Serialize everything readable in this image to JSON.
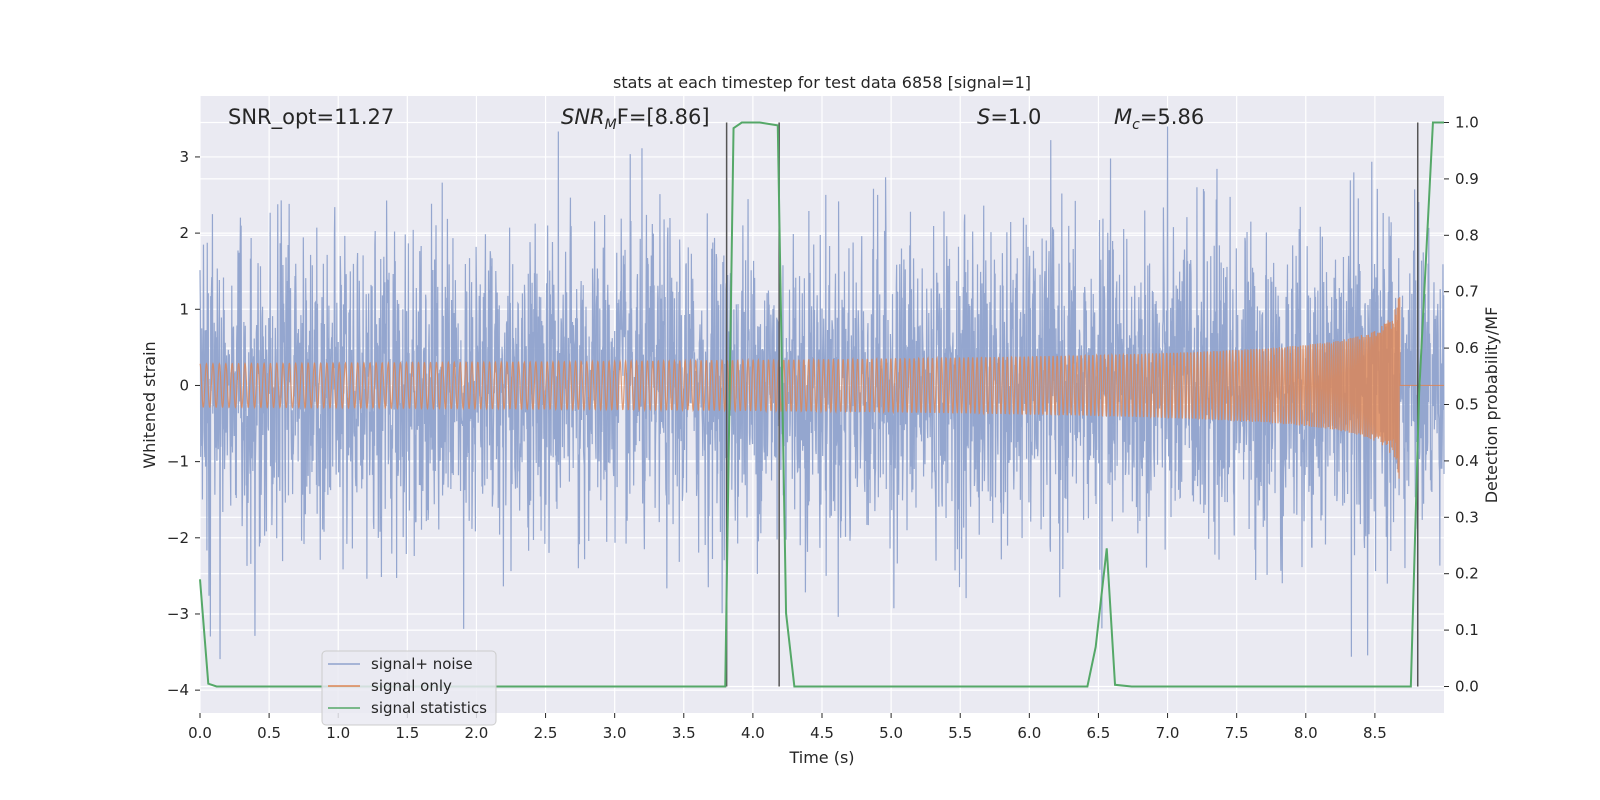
{
  "chart_data": {
    "type": "line",
    "title": "stats at each timestep for test data 6858 [signal=1]",
    "xlabel": "Time (s)",
    "ylabel": "Whitened strain",
    "y2label": "Detection probability/MF",
    "xlim": [
      0.0,
      9.0
    ],
    "ylim": [
      -4.3,
      3.8
    ],
    "y2lim": [
      -0.047,
      1.047
    ],
    "xticks": [
      0.0,
      0.5,
      1.0,
      1.5,
      2.0,
      2.5,
      3.0,
      3.5,
      4.0,
      4.5,
      5.0,
      5.5,
      6.0,
      6.5,
      7.0,
      7.5,
      8.0,
      8.5
    ],
    "yticks": [
      3,
      2,
      1,
      0,
      -1,
      -2,
      -3,
      -4
    ],
    "y2ticks": [
      1.0,
      0.9,
      0.8,
      0.7,
      0.6,
      0.5,
      0.4,
      0.3,
      0.2,
      0.1,
      0.0
    ],
    "grid": true,
    "legend_position": "lower-left",
    "annotations": {
      "snr_opt": "SNR_opt=11.27",
      "snr_mf_italic": "SNR",
      "snr_mf_sub": "M",
      "snr_mf_rest": "F=[8.86]",
      "s_italic": "S",
      "s_rest": "=1.0",
      "mc_italic": "M",
      "mc_sub": "c",
      "mc_rest": "=5.86"
    },
    "series": [
      {
        "name": "signal+ noise",
        "color": "#8fa2cc",
        "type": "noise",
        "amplitude_sigma": 1.0,
        "t_start": 0.0,
        "t_end": 9.0
      },
      {
        "name": "signal only",
        "color": "#dd8452",
        "type": "chirp",
        "t_start": 0.0,
        "t_merger": 8.68,
        "peak_amplitude": 1.3,
        "t_end": 9.0
      },
      {
        "name": "signal statistics",
        "color": "#55a868",
        "type": "line",
        "x": [
          0.0,
          0.06,
          0.12,
          3.8,
          3.86,
          3.92,
          4.05,
          4.18,
          4.24,
          4.3,
          6.42,
          6.48,
          6.56,
          6.62,
          6.74,
          8.76,
          8.82,
          8.92,
          9.0
        ],
        "y": [
          0.19,
          0.005,
          0.0,
          0.0,
          0.99,
          1.0,
          1.0,
          0.995,
          0.13,
          0.0,
          0.0,
          0.07,
          0.245,
          0.003,
          0.0,
          0.0,
          0.52,
          1.0,
          1.0
        ]
      }
    ],
    "vlines": [
      3.81,
      4.19,
      8.81
    ]
  }
}
